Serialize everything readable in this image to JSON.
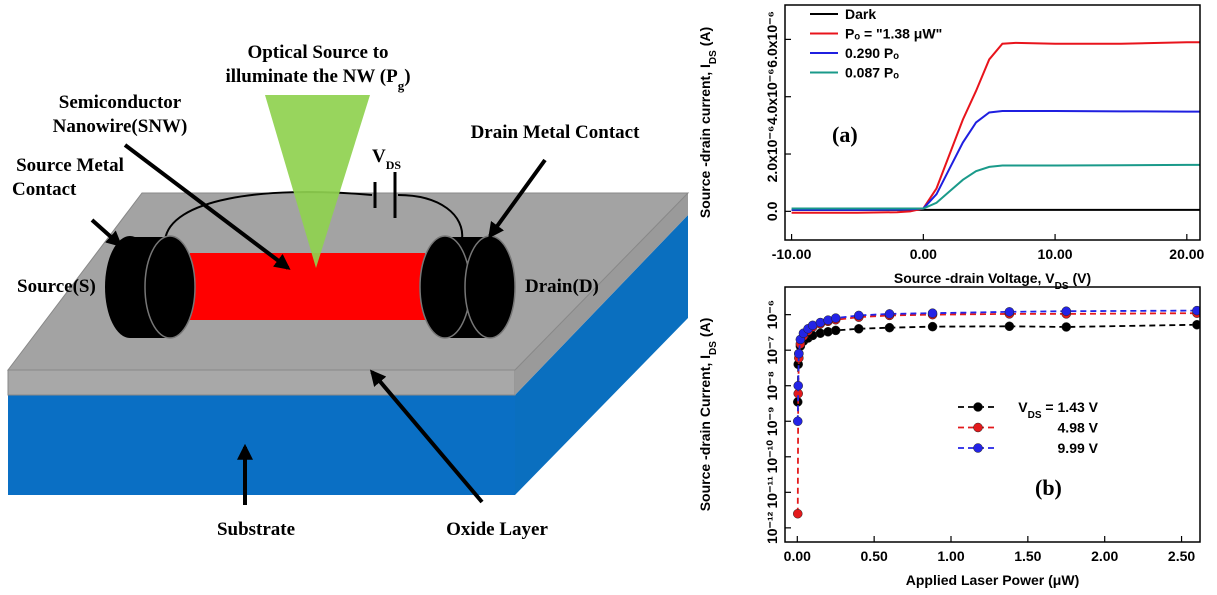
{
  "diagram": {
    "optical_source": {
      "line1": "Optical Source to",
      "line2": "illuminate the NW (P",
      "sub": "g",
      "end": ")"
    },
    "nanowire": {
      "line1": "Semiconductor",
      "line2": "Nanowire(SNW)"
    },
    "vds": {
      "text": "V",
      "sub": "DS"
    },
    "drain_contact": "Drain Metal Contact",
    "source_contact": {
      "line1": "Source Metal",
      "line2": "Contact"
    },
    "source": "Source(S)",
    "drain": "Drain(D)",
    "substrate": "Substrate",
    "oxide": "Oxide Layer"
  },
  "chart_data": [
    {
      "type": "line",
      "annotation": "(a)",
      "xlabel": {
        "text": "Source -drain Voltage, V",
        "sub": "DS",
        "end": " (V)"
      },
      "ylabel": {
        "text": "Source -drain current, I",
        "sub": "DS",
        "end": " (A)"
      },
      "x": [
        -10,
        -5,
        -2,
        -1,
        0,
        1,
        2,
        3,
        4,
        5,
        6,
        7,
        10,
        15,
        20,
        21
      ],
      "xlim": [
        -10.5,
        21
      ],
      "xticks": [
        {
          "value": -10,
          "label": "-10.00"
        },
        {
          "value": 0,
          "label": "0.00"
        },
        {
          "value": 10,
          "label": "10.00"
        },
        {
          "value": 20,
          "label": "20.00"
        }
      ],
      "ylim": [
        -1e-06,
        7.2e-06
      ],
      "yticks": [
        {
          "value": 0,
          "label": "0.0"
        },
        {
          "value": 2e-06,
          "label": "2.0x10⁻⁶"
        },
        {
          "value": 4e-06,
          "label": "4.0x10⁻⁶"
        },
        {
          "value": 6e-06,
          "label": "6.0x10⁻⁶"
        }
      ],
      "series": [
        {
          "name": "Dark",
          "color": "#000000",
          "values": [
            5e-08,
            5e-08,
            5e-08,
            5e-08,
            5e-08,
            5e-08,
            5e-08,
            5e-08,
            5e-08,
            5e-08,
            5e-08,
            5e-08,
            5e-08,
            5e-08,
            5e-08,
            5e-08
          ]
        },
        {
          "name": "Pₒ = \"1.38 μW\"",
          "color": "#e8141c",
          "values": [
            -5e-08,
            -5e-08,
            -3e-08,
            0,
            1e-07,
            8e-07,
            2e-06,
            3.2e-06,
            4.2e-06,
            5.3e-06,
            5.85e-06,
            5.88e-06,
            5.85e-06,
            5.85e-06,
            5.9e-06,
            5.9e-06
          ]
        },
        {
          "name": "0.290 Pₒ",
          "color": "#1f1fe0",
          "values": [
            5e-08,
            5e-08,
            6e-08,
            7e-08,
            1e-07,
            6e-07,
            1.5e-06,
            2.4e-06,
            3.1e-06,
            3.45e-06,
            3.5e-06,
            3.5e-06,
            3.5e-06,
            3.49e-06,
            3.48e-06,
            3.48e-06
          ]
        },
        {
          "name": "0.087 Pₒ",
          "color": "#1a9a8a",
          "values": [
            1e-07,
            1e-07,
            1e-07,
            1e-07,
            1e-07,
            3e-07,
            7e-07,
            1.1e-06,
            1.4e-06,
            1.55e-06,
            1.6e-06,
            1.6e-06,
            1.6e-06,
            1.61e-06,
            1.62e-06,
            1.62e-06
          ]
        }
      ]
    },
    {
      "type": "line",
      "markers": true,
      "dashed": true,
      "ylog": true,
      "annotation": "(b)",
      "xlabel": {
        "text": "Applied Laser Power (μW)"
      },
      "ylabel": {
        "text": "Source -drain Current, I",
        "sub": "DS",
        "end": " (A)"
      },
      "legend_prefix": {
        "text": "V",
        "sub": "DS",
        "end": " = "
      },
      "x": [
        0.003,
        0.006,
        0.01,
        0.02,
        0.04,
        0.07,
        0.1,
        0.15,
        0.2,
        0.25,
        0.4,
        0.6,
        0.88,
        1.38,
        1.75,
        2.6
      ],
      "xlim": [
        -0.08,
        2.62
      ],
      "xticks": [
        {
          "value": 0,
          "label": "0.00"
        },
        {
          "value": 0.5,
          "label": "0.50"
        },
        {
          "value": 1,
          "label": "1.00"
        },
        {
          "value": 1.5,
          "label": "1.50"
        },
        {
          "value": 2,
          "label": "2.00"
        },
        {
          "value": 2.5,
          "label": "2.50"
        }
      ],
      "ylim": [
        4e-13,
        6e-06
      ],
      "yticks": [
        {
          "value": 1e-12,
          "label": "10⁻¹²"
        },
        {
          "value": 1e-11,
          "label": "10⁻¹¹"
        },
        {
          "value": 1e-10,
          "label": "10⁻¹⁰"
        },
        {
          "value": 1e-09,
          "label": "10⁻⁹"
        },
        {
          "value": 1e-08,
          "label": "10⁻⁸"
        },
        {
          "value": 1e-07,
          "label": "10⁻⁷"
        },
        {
          "value": 1e-06,
          "label": "10⁻⁶"
        }
      ],
      "series": [
        {
          "name": "1.43 V",
          "color": "#000000",
          "values": [
            3.5e-09,
            4e-08,
            8e-08,
            1.3e-07,
            1.8e-07,
            2.2e-07,
            2.6e-07,
            3e-07,
            3.3e-07,
            3.6e-07,
            4e-07,
            4.3e-07,
            4.6e-07,
            4.7e-07,
            4.5e-07,
            5.2e-07
          ]
        },
        {
          "name": "4.98 V",
          "color": "#e31a1c",
          "values": [
            2.5e-12,
            6e-09,
            6e-08,
            1.5e-07,
            2.5e-07,
            3.5e-07,
            4.5e-07,
            5.5e-07,
            6.5e-07,
            7.2e-07,
            8.5e-07,
            9.5e-07,
            1e-06,
            1.05e-06,
            1.05e-06,
            1.1e-06
          ]
        },
        {
          "name": "9.99 V",
          "color": "#2323e6",
          "values": [
            1e-09,
            1e-08,
            8e-08,
            2e-07,
            3e-07,
            4e-07,
            5e-07,
            6e-07,
            7e-07,
            8e-07,
            9.5e-07,
            1.05e-06,
            1.1e-06,
            1.2e-06,
            1.25e-06,
            1.3e-06
          ]
        }
      ]
    }
  ]
}
